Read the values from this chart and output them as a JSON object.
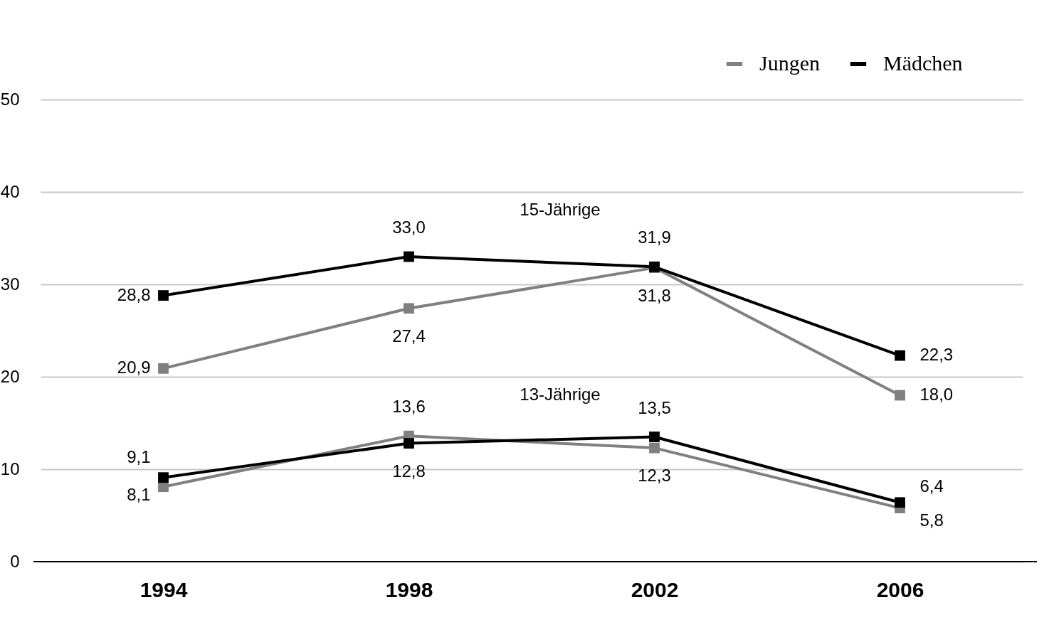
{
  "chart_data": {
    "type": "line",
    "categories": [
      "1994",
      "1998",
      "2002",
      "2006"
    ],
    "series": [
      {
        "name": "Jungen",
        "color": "#808080",
        "values": [
          20.9,
          27.4,
          31.8,
          18.0
        ],
        "value_labels": [
          "20,9",
          "27,4",
          "31,8",
          "18,0"
        ]
      },
      {
        "name": "Mädchen",
        "color": "#000000",
        "values": [
          28.8,
          33.0,
          31.9,
          22.3
        ],
        "value_labels": [
          "28,8",
          "33,0",
          "31,9",
          "22,3"
        ]
      },
      {
        "color": "#808080",
        "values": [
          8.1,
          13.6,
          12.3,
          5.8
        ],
        "value_labels": [
          "8,1",
          "13,6",
          "12,3",
          "5,8"
        ]
      },
      {
        "color": "#000000",
        "values": [
          9.1,
          12.8,
          13.5,
          6.4
        ],
        "value_labels": [
          "9,1",
          "12,8",
          "13,5",
          "6,4"
        ]
      }
    ],
    "annotations": [
      "15-Jährige",
      "13-Jährige"
    ],
    "ylim": [
      0,
      50
    ],
    "yticks": [
      0,
      10,
      20,
      30,
      40,
      50
    ],
    "grid": "y",
    "legend": "top right",
    "marker": "square",
    "line_style": "solid"
  }
}
